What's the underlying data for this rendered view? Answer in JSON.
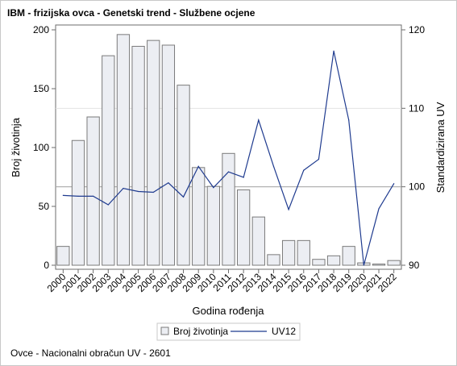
{
  "title": "IBM - frizijska ovca - Genetski trend - Službene ocjene",
  "footnote": "Ovce - Nacionalni obračun UV - 2601",
  "colors": {
    "bar_fill": "#eceef3",
    "bar_stroke": "#7a7a7a",
    "line": "#1f3b8f",
    "reference_line": "#a9a9a9",
    "frame": "#c8c8c8"
  },
  "chart_data": {
    "type": "bar",
    "title": "IBM - frizijska ovca - Genetski trend - Službene ocjene",
    "xlabel": "Godina rođenja",
    "ylabel": "Broj životinja",
    "y2label": "Standardizirana UV",
    "categories": [
      "2000",
      "2001",
      "2002",
      "2003",
      "2004",
      "2005",
      "2006",
      "2007",
      "2008",
      "2009",
      "2010",
      "2011",
      "2012",
      "2013",
      "2014",
      "2015",
      "2016",
      "2017",
      "2018",
      "2019",
      "2020",
      "2021",
      "2022"
    ],
    "ylim": [
      0,
      200
    ],
    "yticks": [
      0,
      50,
      100,
      150,
      200
    ],
    "y2lim": [
      90,
      120
    ],
    "y2ticks": [
      90,
      100,
      110,
      120
    ],
    "reference_y2": 100,
    "grid": false,
    "legend_position": "bottom",
    "series": [
      {
        "name": "Broj životinja",
        "type": "bar",
        "axis": "left",
        "values": [
          16,
          106,
          126,
          178,
          196,
          186,
          191,
          187,
          153,
          83,
          67,
          95,
          64,
          41,
          9,
          21,
          21,
          5,
          8,
          16,
          2,
          1,
          4
        ]
      },
      {
        "name": "UV12",
        "type": "line",
        "axis": "right",
        "values": [
          98.9,
          98.8,
          98.8,
          97.7,
          99.8,
          99.4,
          99.3,
          100.5,
          98.7,
          102.6,
          99.9,
          101.9,
          101.2,
          108.5,
          102.6,
          97.1,
          102.1,
          103.5,
          117.3,
          108.5,
          90.0,
          97.2,
          100.4
        ]
      }
    ]
  },
  "legend": {
    "bar_label": "Broj životinja",
    "line_label": "UV12"
  }
}
